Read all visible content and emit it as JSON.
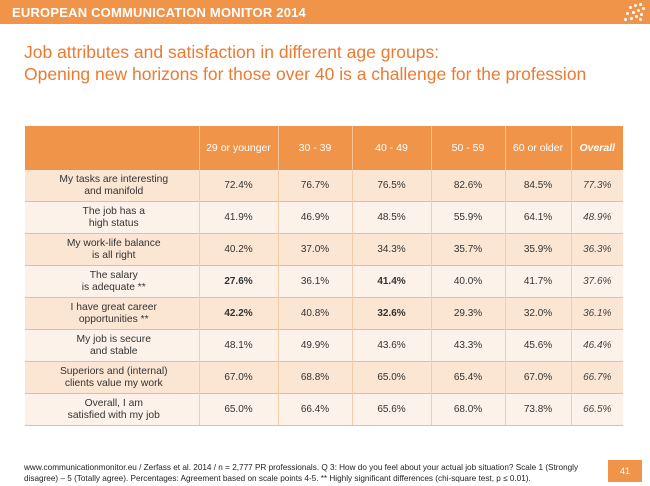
{
  "header": {
    "brand": "EUROPEAN COMMUNICATION MONITOR 2014",
    "accent_color": "#f0944a"
  },
  "title": {
    "line1": "Job attributes and satisfaction in different age groups:",
    "line2": "Opening new horizons for those over 40 is a challenge for the profession",
    "color": "#ec7a30"
  },
  "table": {
    "columns": [
      "29 or younger",
      "30 - 39",
      "40 - 49",
      "50 - 59",
      "60 or older",
      "Overall"
    ],
    "rows": [
      {
        "label1": "My tasks are interesting",
        "label2": "and manifold",
        "values": [
          "72.4%",
          "76.7%",
          "76.5%",
          "82.6%",
          "84.5%",
          "77.3%"
        ]
      },
      {
        "label1": "The job has a",
        "label2": "high status",
        "values": [
          "41.9%",
          "46.9%",
          "48.5%",
          "55.9%",
          "64.1%",
          "48.9%"
        ]
      },
      {
        "label1": "My work-life balance",
        "label2": "is all right",
        "values": [
          "40.2%",
          "37.0%",
          "34.3%",
          "35.7%",
          "35.9%",
          "36.3%"
        ]
      },
      {
        "label1": "The salary",
        "label2": "is adequate **",
        "values": [
          "27.6%",
          "36.1%",
          "41.4%",
          "40.0%",
          "41.7%",
          "37.6%"
        ]
      },
      {
        "label1": "I have great  career",
        "label2": "opportunities **",
        "values": [
          "42.2%",
          "40.8%",
          "32.6%",
          "29.3%",
          "32.0%",
          "36.1%"
        ]
      },
      {
        "label1": "My job is secure",
        "label2": "and stable",
        "values": [
          "48.1%",
          "49.9%",
          "43.6%",
          "43.3%",
          "45.6%",
          "46.4%"
        ]
      },
      {
        "label1": "Superiors and (internal)",
        "label2": "clients value my work",
        "values": [
          "67.0%",
          "68.8%",
          "65.0%",
          "65.4%",
          "67.0%",
          "66.7%"
        ]
      },
      {
        "label1": "Overall, I am",
        "label2": "satisfied with my job",
        "values": [
          "65.0%",
          "66.4%",
          "65.6%",
          "68.0%",
          "73.8%",
          "66.5%"
        ]
      }
    ]
  },
  "footnote": {
    "line1": "www.communicationmonitor.eu / Zerfass et al. 2014 / n =  2,777 PR professionals. Q 3: How do you feel about your actual job situation? Scale 1 (Strongly",
    "line2": "disagree) – 5 (Totally agree). Percentages: Agreement based on scale points 4-5. ** Highly significant differences (chi-square test, p ≤ 0.01)."
  },
  "page_number": "41"
}
